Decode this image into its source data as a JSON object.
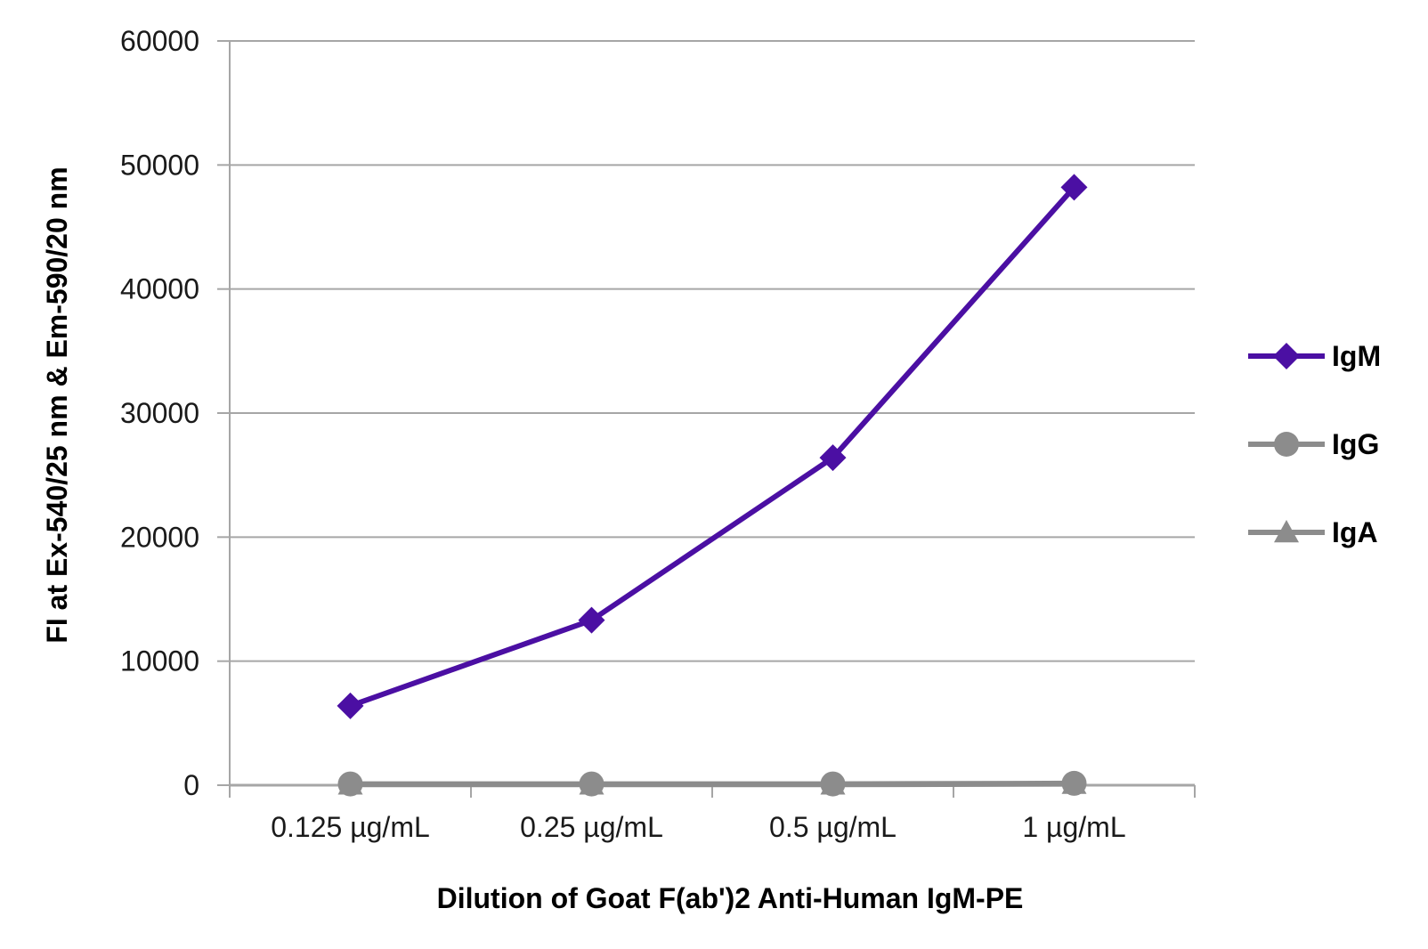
{
  "chart_data": {
    "type": "line",
    "title": "",
    "xlabel": "Dilution of Goat F(ab')2 Anti-Human IgM-PE",
    "ylabel": "FI at Ex-540/25 nm & Em-590/20 nm",
    "categories": [
      "0.125 µg/mL",
      "0.25 µg/mL",
      "0.5 µg/mL",
      "1 µg/mL"
    ],
    "ylim": [
      0,
      60000
    ],
    "yticks": [
      "0",
      "10000",
      "20000",
      "30000",
      "40000",
      "50000",
      "60000"
    ],
    "grid": true,
    "legend_position": "right",
    "series": [
      {
        "name": "IgM",
        "values": [
          6400,
          13300,
          26400,
          48200
        ],
        "color": "#4b0fa3",
        "marker": "diamond"
      },
      {
        "name": "IgG",
        "values": [
          100,
          100,
          100,
          150
        ],
        "color": "#8c8c8c",
        "marker": "circle"
      },
      {
        "name": "IgA",
        "values": [
          50,
          50,
          50,
          100
        ],
        "color": "#8c8c8c",
        "marker": "triangle"
      }
    ]
  }
}
